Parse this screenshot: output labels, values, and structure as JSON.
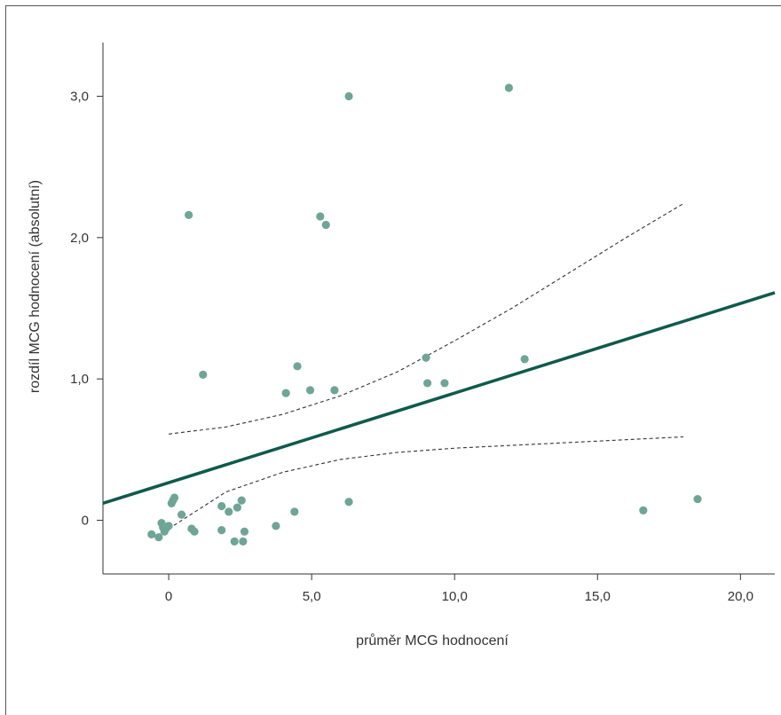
{
  "chart_data": {
    "type": "scatter",
    "title": "",
    "xlabel": "průměr MCG hodnocení",
    "ylabel": "rozdíl MCG hodnocení (absolutní)",
    "xlim": [
      -2.3,
      21.2
    ],
    "ylim": [
      -0.38,
      3.38
    ],
    "x_ticks": [
      {
        "value": 0,
        "label": "0"
      },
      {
        "value": 5,
        "label": "5,0"
      },
      {
        "value": 10,
        "label": "10,0"
      },
      {
        "value": 15,
        "label": "15,0"
      },
      {
        "value": 20,
        "label": "20,0"
      }
    ],
    "y_ticks": [
      {
        "value": 0,
        "label": "0"
      },
      {
        "value": 1,
        "label": "1,0"
      },
      {
        "value": 2,
        "label": "2,0"
      },
      {
        "value": 3,
        "label": "3,0"
      }
    ],
    "grid": false,
    "points": [
      {
        "x": -0.6,
        "y": -0.1
      },
      {
        "x": -0.35,
        "y": -0.12
      },
      {
        "x": -0.25,
        "y": -0.02
      },
      {
        "x": -0.2,
        "y": -0.05
      },
      {
        "x": -0.15,
        "y": -0.08
      },
      {
        "x": -0.1,
        "y": -0.06
      },
      {
        "x": 0.0,
        "y": -0.04
      },
      {
        "x": 0.1,
        "y": 0.12
      },
      {
        "x": 0.15,
        "y": 0.14
      },
      {
        "x": 0.2,
        "y": 0.16
      },
      {
        "x": 0.45,
        "y": 0.04
      },
      {
        "x": 0.7,
        "y": 2.16
      },
      {
        "x": 0.8,
        "y": -0.06
      },
      {
        "x": 0.9,
        "y": -0.08
      },
      {
        "x": 1.2,
        "y": 1.03
      },
      {
        "x": 1.85,
        "y": 0.1
      },
      {
        "x": 1.85,
        "y": -0.07
      },
      {
        "x": 2.1,
        "y": 0.06
      },
      {
        "x": 2.3,
        "y": -0.15
      },
      {
        "x": 2.4,
        "y": 0.09
      },
      {
        "x": 2.55,
        "y": 0.14
      },
      {
        "x": 2.6,
        "y": -0.15
      },
      {
        "x": 2.65,
        "y": -0.08
      },
      {
        "x": 3.75,
        "y": -0.04
      },
      {
        "x": 4.1,
        "y": 0.9
      },
      {
        "x": 4.4,
        "y": 0.06
      },
      {
        "x": 4.5,
        "y": 1.09
      },
      {
        "x": 4.95,
        "y": 0.92
      },
      {
        "x": 5.3,
        "y": 2.15
      },
      {
        "x": 5.5,
        "y": 2.09
      },
      {
        "x": 5.8,
        "y": 0.92
      },
      {
        "x": 6.3,
        "y": 3.0
      },
      {
        "x": 6.3,
        "y": 0.13
      },
      {
        "x": 9.0,
        "y": 1.15
      },
      {
        "x": 9.05,
        "y": 0.97
      },
      {
        "x": 9.65,
        "y": 0.97
      },
      {
        "x": 11.9,
        "y": 3.06
      },
      {
        "x": 12.45,
        "y": 1.14
      },
      {
        "x": 16.6,
        "y": 0.07
      },
      {
        "x": 18.5,
        "y": 0.15
      }
    ],
    "regression_line": {
      "x": [
        -2.3,
        21.2
      ],
      "y": [
        0.12,
        1.61
      ]
    },
    "confidence_upper": {
      "x": [
        0,
        2,
        4,
        6,
        8,
        10,
        12,
        14,
        16,
        18
      ],
      "y": [
        0.61,
        0.66,
        0.75,
        0.88,
        1.05,
        1.27,
        1.5,
        1.75,
        2.0,
        2.24
      ]
    },
    "confidence_lower": {
      "x": [
        0,
        2,
        4,
        6,
        8,
        10,
        12,
        14,
        16,
        18
      ],
      "y": [
        -0.06,
        0.2,
        0.34,
        0.43,
        0.48,
        0.51,
        0.53,
        0.55,
        0.57,
        0.59
      ]
    },
    "colors": {
      "points": "#6fa596",
      "regression": "#0f5a4c",
      "confidence": "#333333",
      "axes": "#333333"
    }
  }
}
